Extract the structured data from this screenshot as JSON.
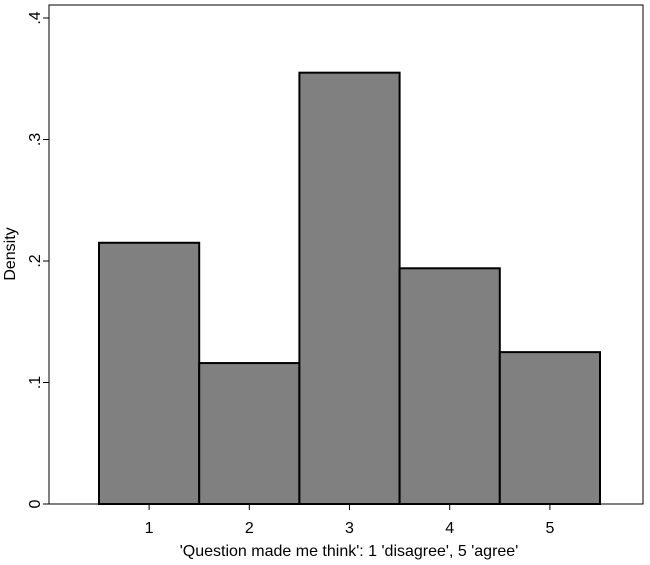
{
  "chart_data": {
    "type": "bar",
    "title": "",
    "xlabel": "'Question made me think': 1 'disagree', 5 'agree'",
    "ylabel": "Density",
    "categories": [
      "1",
      "2",
      "3",
      "4",
      "5"
    ],
    "x": [
      1,
      2,
      3,
      4,
      5
    ],
    "values": [
      0.215,
      0.116,
      0.355,
      0.194,
      0.125
    ],
    "xlim": [
      0.5,
      5.5
    ],
    "ylim": [
      0,
      0.4
    ],
    "ytick_labels": [
      "0",
      ".1",
      ".2",
      ".3",
      ".4"
    ],
    "ytick_values": [
      0,
      0.1,
      0.2,
      0.3,
      0.4
    ],
    "grid": false,
    "legend": "none",
    "bar_color": "#808080",
    "bar_edge_color": "#000000"
  }
}
